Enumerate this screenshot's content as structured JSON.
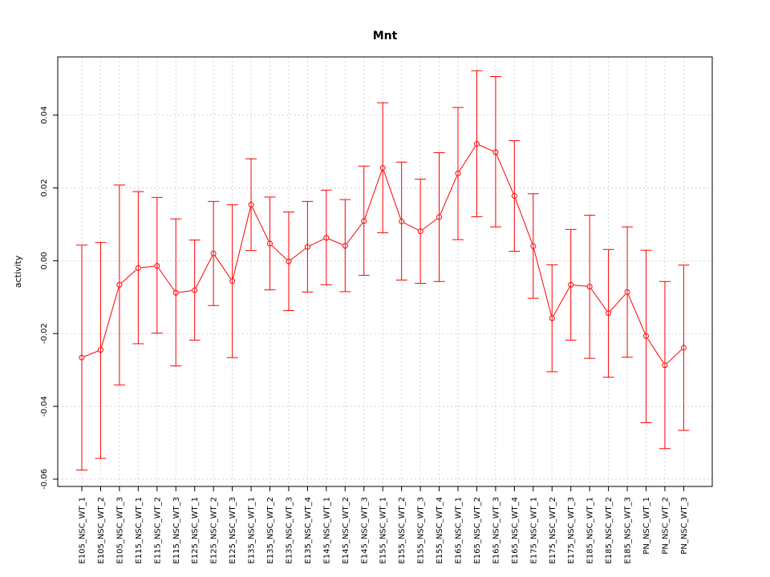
{
  "chart_data": {
    "type": "line",
    "title": "Mnt",
    "xlabel": "",
    "ylabel": "activity",
    "ylim": [
      -0.062,
      0.056
    ],
    "yticks": [
      -0.06,
      -0.04,
      -0.02,
      0.0,
      0.02,
      0.04
    ],
    "ytick_labels": [
      "-0.06",
      "-0.04",
      "-0.02",
      "0.00",
      "0.02",
      "0.04"
    ],
    "grid": true,
    "legend": "none",
    "series_color": "#ff0000",
    "grid_color": "#d3d3d3",
    "categories": [
      "E105_NSC_WT_1",
      "E105_NSC_WT_2",
      "E105_NSC_WT_3",
      "E115_NSC_WT_1",
      "E115_NSC_WT_2",
      "E115_NSC_WT_3",
      "E125_NSC_WT_1",
      "E125_NSC_WT_2",
      "E125_NSC_WT_3",
      "E135_NSC_WT_1",
      "E135_NSC_WT_2",
      "E135_NSC_WT_3",
      "E135_NSC_WT_4",
      "E145_NSC_WT_1",
      "E145_NSC_WT_2",
      "E145_NSC_WT_3",
      "E155_NSC_WT_1",
      "E155_NSC_WT_2",
      "E155_NSC_WT_3",
      "E155_NSC_WT_4",
      "E165_NSC_WT_1",
      "E165_NSC_WT_2",
      "E165_NSC_WT_3",
      "E165_NSC_WT_4",
      "E175_NSC_WT_1",
      "E175_NSC_WT_2",
      "E175_NSC_WT_3",
      "E185_NSC_WT_1",
      "E185_NSC_WT_2",
      "E185_NSC_WT_3",
      "PN_NSC_WT_1",
      "PN_NSC_WT_2",
      "PN_NSC_WT_3"
    ],
    "values": [
      -0.0266,
      -0.0245,
      -0.0066,
      -0.002,
      -0.0014,
      -0.0088,
      -0.0081,
      0.002,
      -0.0056,
      0.0154,
      0.0047,
      -0.0002,
      0.0038,
      0.0063,
      0.0041,
      0.0109,
      0.0255,
      0.0108,
      0.0081,
      0.012,
      0.024,
      0.0321,
      0.0298,
      0.0178,
      0.004,
      -0.0158,
      -0.0066,
      -0.0071,
      -0.0144,
      -0.0086,
      -0.0207,
      -0.0287,
      -0.0239
    ],
    "error_upper": [
      0.0043,
      0.005,
      0.0208,
      0.019,
      0.0174,
      0.0115,
      0.0057,
      0.0163,
      0.0154,
      0.028,
      0.0175,
      0.0134,
      0.0163,
      0.0194,
      0.0168,
      0.026,
      0.0434,
      0.0271,
      0.0224,
      0.0297,
      0.0421,
      0.0522,
      0.0506,
      0.033,
      0.0184,
      -0.0011,
      0.0086,
      0.0125,
      0.0031,
      0.0093,
      0.0029,
      -0.0057,
      -0.0012
    ],
    "error_lower": [
      -0.0575,
      -0.0543,
      -0.0341,
      -0.0228,
      -0.0199,
      -0.0289,
      -0.0218,
      -0.0123,
      -0.0266,
      0.0028,
      -0.008,
      -0.0137,
      -0.0086,
      -0.0066,
      -0.0085,
      -0.004,
      0.0077,
      -0.0053,
      -0.0062,
      -0.0057,
      0.0058,
      0.0121,
      0.0093,
      0.0026,
      -0.0103,
      -0.0305,
      -0.0218,
      -0.0268,
      -0.032,
      -0.0265,
      -0.0445,
      -0.0516,
      -0.0466
    ]
  }
}
